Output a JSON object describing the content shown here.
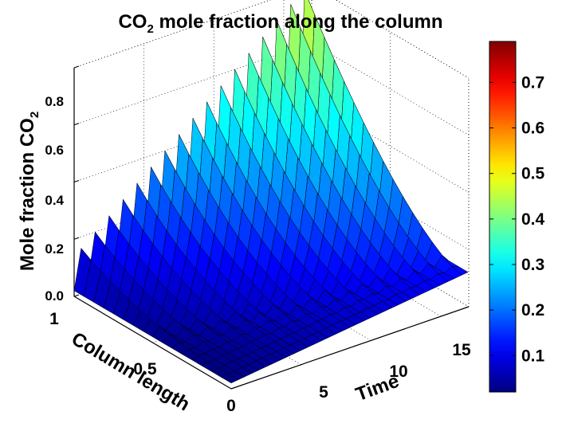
{
  "chart_data": {
    "type": "surface",
    "title": {
      "main": "CO",
      "sub": "2",
      "rest": " mole fraction along the column"
    },
    "xlabel": "Column length",
    "ylabel": "Time",
    "zlabel": {
      "main": "Mole fraction CO",
      "sub": "2"
    },
    "x_range": [
      0,
      1
    ],
    "y_range": [
      0,
      17
    ],
    "z_range": [
      0,
      0.8
    ],
    "x_ticks": [
      "0",
      "0.5",
      "1"
    ],
    "y_ticks": [
      "5",
      "10",
      "15"
    ],
    "z_ticks": [
      "0.0",
      "0.2",
      "0.4",
      "0.6",
      "0.8"
    ],
    "colorbar_ticks": [
      "0.1",
      "0.2",
      "0.3",
      "0.4",
      "0.5",
      "0.6",
      "0.7"
    ],
    "colorbar_range": [
      0.02,
      0.79
    ],
    "colormap": "jet",
    "grid": true,
    "series": [
      {
        "time": 0.5,
        "max_mole_fraction": 0.16
      },
      {
        "time": 1.5,
        "max_mole_fraction": 0.2
      },
      {
        "time": 2.5,
        "max_mole_fraction": 0.24
      },
      {
        "time": 3.5,
        "max_mole_fraction": 0.28
      },
      {
        "time": 4.5,
        "max_mole_fraction": 0.32
      },
      {
        "time": 5.5,
        "max_mole_fraction": 0.36
      },
      {
        "time": 6.5,
        "max_mole_fraction": 0.4
      },
      {
        "time": 7.5,
        "max_mole_fraction": 0.44
      },
      {
        "time": 8.5,
        "max_mole_fraction": 0.48
      },
      {
        "time": 9.5,
        "max_mole_fraction": 0.52
      },
      {
        "time": 10.5,
        "max_mole_fraction": 0.56
      },
      {
        "time": 11.5,
        "max_mole_fraction": 0.6
      },
      {
        "time": 12.5,
        "max_mole_fraction": 0.64
      },
      {
        "time": 13.5,
        "max_mole_fraction": 0.68
      },
      {
        "time": 14.5,
        "max_mole_fraction": 0.72
      },
      {
        "time": 15.5,
        "max_mole_fraction": 0.76
      },
      {
        "time": 16.5,
        "max_mole_fraction": 0.79
      }
    ]
  }
}
